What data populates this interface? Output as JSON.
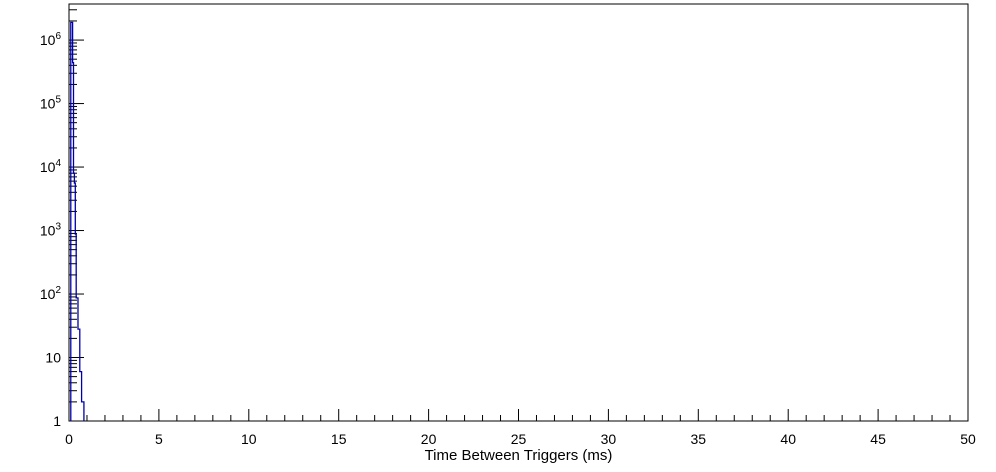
{
  "window": {
    "title": "Time Between Triggers histogram"
  },
  "colors": {
    "background": "#ffffff",
    "frame": "#000000",
    "ticks": "#000000",
    "labels": "#000000",
    "histogram_line": "#0000aa"
  },
  "chart_data": {
    "type": "bar",
    "subtype": "step-histogram-log-y",
    "title": "",
    "xlabel": "Time Between Triggers (ms)",
    "ylabel": "",
    "x_range": [
      0,
      50
    ],
    "y_scale": "log",
    "y_range": [
      1,
      3700000
    ],
    "grid": "off",
    "legend": "none",
    "x_major_tick_step": 5,
    "x_minor_tick_step": 1,
    "x_tick_labels": [
      "0",
      "5",
      "10",
      "15",
      "20",
      "25",
      "30",
      "35",
      "40",
      "45",
      "50"
    ],
    "y_major_ticks": [
      {
        "value": 1,
        "text": "1",
        "sup": ""
      },
      {
        "value": 10,
        "text": "10",
        "sup": ""
      },
      {
        "value": 100,
        "text": "10",
        "sup": "2"
      },
      {
        "value": 1000,
        "text": "10",
        "sup": "3"
      },
      {
        "value": 10000,
        "text": "10",
        "sup": "4"
      },
      {
        "value": 100000,
        "text": "10",
        "sup": "5"
      },
      {
        "value": 1000000,
        "text": "10",
        "sup": "6"
      }
    ],
    "bins": [
      {
        "x_low": 0.1,
        "x_high": 0.2,
        "count": 1900000
      },
      {
        "x_low": 0.2,
        "x_high": 0.25,
        "count": 440000
      },
      {
        "x_low": 0.25,
        "x_high": 0.3,
        "count": 8000
      },
      {
        "x_low": 0.3,
        "x_high": 0.35,
        "count": 5600
      },
      {
        "x_low": 0.35,
        "x_high": 0.4,
        "count": 880
      },
      {
        "x_low": 0.4,
        "x_high": 0.5,
        "count": 87
      },
      {
        "x_low": 0.5,
        "x_high": 0.6,
        "count": 28
      },
      {
        "x_low": 0.6,
        "x_high": 0.7,
        "count": 6
      },
      {
        "x_low": 0.7,
        "x_high": 0.83,
        "count": 2
      }
    ],
    "bins_note": "counts estimated from log-scale pixel positions; all other bins 0 up to x=50"
  }
}
